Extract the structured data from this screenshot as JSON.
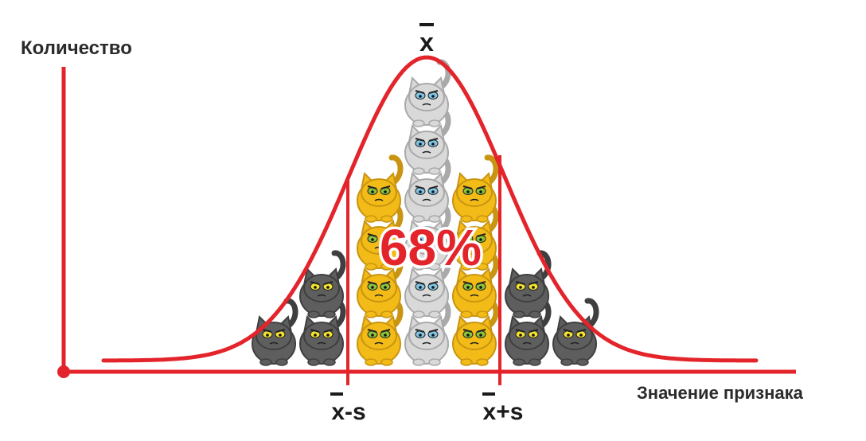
{
  "labels": {
    "y_axis": "Количество",
    "x_axis": "Значение признака",
    "mean": "x",
    "minus_s": "x-s",
    "plus_s": "x+s",
    "percent": "68%"
  },
  "colors": {
    "curve": "#e3242b",
    "axis": "#e3242b",
    "text": "#2b2b2b",
    "cat_gray": "#5e5e5e",
    "cat_yellow": "#f2bb18",
    "cat_white": "#d9d9d9",
    "eye_yellow": "#f3e230",
    "eye_green": "#8ac43f",
    "eye_blue": "#7fc6e6"
  },
  "cats": {
    "columns": [
      {
        "color": "gray",
        "count": 1
      },
      {
        "color": "gray",
        "count": 2
      },
      {
        "color": "yellow",
        "count": 4
      },
      {
        "color": "white",
        "count": 6
      },
      {
        "color": "yellow",
        "count": 4
      },
      {
        "color": "gray",
        "count": 2
      },
      {
        "color": "gray",
        "count": 1
      }
    ]
  }
}
